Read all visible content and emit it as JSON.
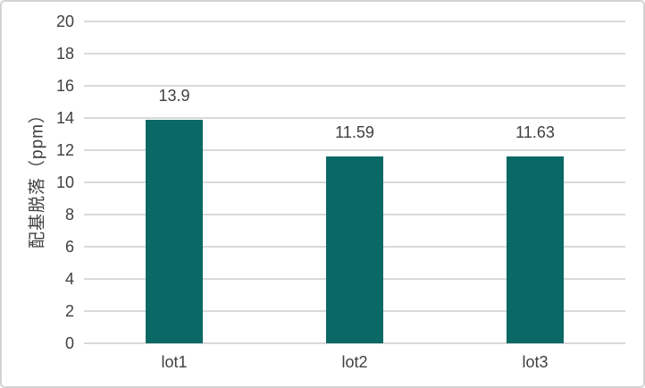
{
  "chart_data": {
    "type": "bar",
    "title": "",
    "categories": [
      "lot1",
      "lot2",
      "lot3"
    ],
    "values": [
      13.9,
      11.59,
      11.63
    ],
    "data_labels": [
      "13.9",
      "11.59",
      "11.63"
    ],
    "xlabel": "",
    "ylabel": "配基脱落（ppm）",
    "ylim": [
      0,
      20
    ],
    "ytick_step": 2,
    "ytick_labels": [
      "0",
      "2",
      "4",
      "6",
      "8",
      "10",
      "12",
      "14",
      "16",
      "18",
      "20"
    ],
    "grid": true,
    "legend_position": "none",
    "colors": {
      "bar_fill": "#0a6865",
      "gridline": "#d9d9d9",
      "axis_line": "#d9d9d9",
      "text": "#404040",
      "frame_border": "#d3d3d3",
      "background": "#ffffff"
    }
  }
}
